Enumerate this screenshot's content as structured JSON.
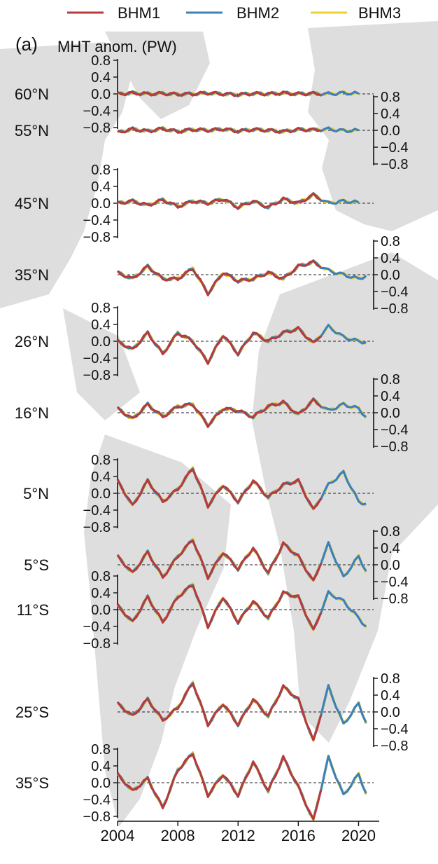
{
  "panel_label": "(a)",
  "colors": {
    "BHM1": "#b83a3a",
    "BHM2": "#3c82b8",
    "BHM3": "#efd02f",
    "map_land": "#dedede"
  },
  "legend": {
    "placement": "top",
    "entries": [
      "BHM1",
      "BHM2",
      "BHM3"
    ]
  },
  "chart_data": {
    "type": "line",
    "ylabel": "MHT anom. (PW)",
    "xlabel": "",
    "x_ticks": [
      "2004",
      "2008",
      "2012",
      "2016",
      "2020"
    ],
    "xlim": [
      2004,
      2021
    ],
    "ylim": [
      -0.8,
      0.8
    ],
    "y_ticks": [
      "0.8",
      "0.4",
      "0.0",
      "−0.4",
      "−0.8"
    ],
    "grid": false,
    "zero_line": "dashed",
    "series_names": [
      "BHM1",
      "BHM2",
      "BHM3"
    ],
    "series_coverage": {
      "BHM1": [
        2004,
        2017.6
      ],
      "BHM2": [
        2004,
        2020.7
      ],
      "BHM3": [
        2004,
        2020.7
      ]
    },
    "latitudes": [
      {
        "label": "60°N",
        "axis_side": "left",
        "x_start": 2004,
        "anchors": [
          0.0,
          0.02,
          0.0,
          0.01,
          -0.01,
          0.0,
          0.02,
          0.0,
          -0.02,
          0.01,
          0.0,
          0.02,
          0.0,
          0.01,
          0.0,
          0.02,
          0.01
        ]
      },
      {
        "label": "55°N",
        "axis_side": "right",
        "x_start": 2004,
        "anchors": [
          -0.05,
          0.03,
          -0.02,
          0.04,
          -0.03,
          0.02,
          0.0,
          0.03,
          -0.02,
          0.02,
          0.0,
          -0.03,
          0.02,
          0.01,
          0.03,
          -0.01,
          0.0
        ]
      },
      {
        "label": "45°N",
        "axis_side": "left",
        "x_start": 2004,
        "anchors": [
          0.0,
          0.05,
          -0.05,
          0.08,
          -0.08,
          0.05,
          0.0,
          0.1,
          -0.1,
          0.05,
          -0.1,
          0.1,
          0.0,
          0.2,
          0.0,
          0.05,
          0.02
        ]
      },
      {
        "label": "35°N",
        "axis_side": "right",
        "x_start": 2004,
        "anchors": [
          0.05,
          -0.1,
          0.2,
          -0.1,
          -0.1,
          0.15,
          -0.45,
          0.05,
          -0.15,
          -0.1,
          0.05,
          -0.1,
          0.2,
          0.3,
          0.1,
          0.0,
          -0.1,
          0.05
        ]
      },
      {
        "label": "26°N",
        "axis_side": "left",
        "x_start": 2004,
        "anchors": [
          0.0,
          -0.2,
          0.2,
          -0.3,
          0.2,
          0.0,
          -0.5,
          0.15,
          -0.3,
          0.2,
          0.0,
          0.2,
          0.3,
          -0.05,
          0.35,
          0.1,
          0.0,
          -0.05
        ]
      },
      {
        "label": "16°N",
        "axis_side": "right",
        "x_start": 2004,
        "anchors": [
          0.1,
          -0.15,
          0.2,
          -0.1,
          0.15,
          0.2,
          -0.3,
          0.1,
          0.05,
          -0.1,
          0.15,
          0.25,
          -0.05,
          0.3,
          0.05,
          0.2,
          0.1,
          -0.3
        ]
      },
      {
        "label": "5°N",
        "axis_side": "left",
        "x_start": 2004,
        "anchors": [
          0.3,
          -0.3,
          0.3,
          -0.2,
          0.1,
          0.6,
          -0.3,
          0.2,
          -0.2,
          0.3,
          -0.1,
          0.2,
          0.3,
          -0.4,
          0.2,
          0.5,
          -0.2,
          -0.3
        ]
      },
      {
        "label": "5°S",
        "axis_side": "right",
        "x_start": 2004,
        "anchors": [
          0.2,
          -0.2,
          0.3,
          -0.3,
          0.2,
          0.6,
          -0.3,
          0.3,
          -0.1,
          0.4,
          -0.2,
          0.5,
          0.2,
          -0.4,
          0.5,
          -0.3,
          0.2,
          -0.5
        ]
      },
      {
        "label": "11°S",
        "axis_side": "left",
        "x_start": 2004,
        "anchors": [
          0.1,
          -0.3,
          0.3,
          -0.3,
          0.3,
          0.6,
          -0.4,
          0.3,
          -0.3,
          0.2,
          -0.2,
          0.4,
          0.3,
          -0.5,
          0.4,
          0.2,
          -0.2,
          -0.6
        ]
      },
      {
        "label": "25°S",
        "axis_side": "right",
        "x_start": 2004,
        "anchors": [
          0.2,
          -0.1,
          0.3,
          -0.2,
          0.1,
          0.7,
          -0.3,
          0.2,
          -0.3,
          0.3,
          -0.1,
          0.6,
          0.3,
          -0.7,
          0.6,
          -0.3,
          0.2,
          -0.7
        ]
      },
      {
        "label": "35°S",
        "axis_side": "left",
        "x_start": 2004,
        "anchors": [
          0.2,
          -0.2,
          0.1,
          -0.6,
          0.3,
          0.7,
          -0.3,
          0.2,
          -0.3,
          0.5,
          -0.2,
          0.6,
          -0.1,
          -0.9,
          0.6,
          -0.3,
          0.2,
          -0.7
        ]
      }
    ]
  }
}
